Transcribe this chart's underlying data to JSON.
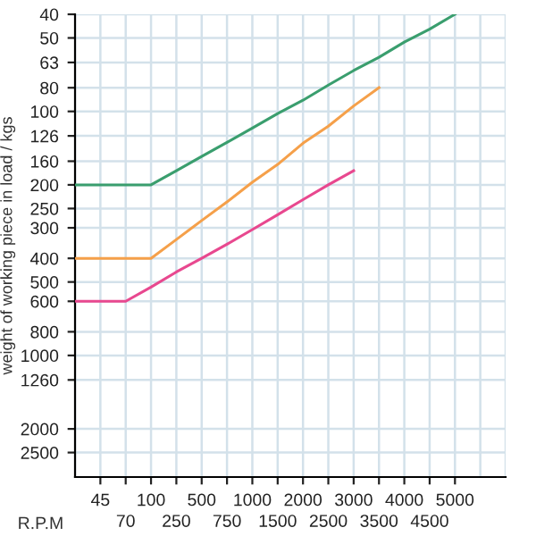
{
  "chart_data": {
    "type": "line",
    "xlabel": "R.P.M",
    "ylabel": "weight of working piece in load / kgs",
    "categories": [
      null,
      "45",
      "70",
      "100",
      "250",
      "500",
      "750",
      "1000",
      "1500",
      "2000",
      "2500",
      "3000",
      "3500",
      "4000",
      "4500",
      "5000",
      null,
      null
    ],
    "series": [
      {
        "color": "#3a9e6e",
        "values": [
          200,
          200,
          200,
          200,
          175,
          153,
          134,
          117,
          102,
          90,
          78,
          68,
          60,
          52,
          46,
          40,
          null,
          null
        ]
      },
      {
        "color": "#f5a04a",
        "values": [
          400,
          400,
          400,
          400,
          335,
          280,
          235,
          195,
          165,
          135,
          115,
          95,
          80,
          null,
          null,
          null,
          null,
          null
        ]
      },
      {
        "color": "#e8488f",
        "values": [
          600,
          600,
          600,
          525,
          455,
          400,
          350,
          305,
          265,
          230,
          200,
          175,
          null,
          null,
          null,
          null,
          null,
          null
        ]
      }
    ],
    "log": "y",
    "ylim": [
      3150,
      40
    ],
    "yticks": [
      40,
      50,
      63,
      80,
      100,
      126,
      160,
      200,
      250,
      300,
      400,
      500,
      600,
      800,
      1000,
      1260,
      2000,
      2500
    ],
    "grid": true,
    "marker": "none",
    "line_style": "solid"
  }
}
